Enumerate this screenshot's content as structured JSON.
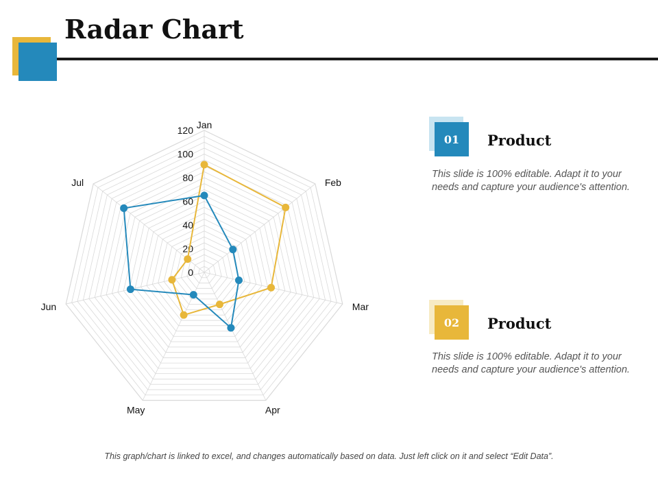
{
  "page": {
    "title": "Radar Chart"
  },
  "colors": {
    "series1": "#e8b73a",
    "series2": "#2489bb",
    "grid": "#d9d9d9",
    "rule": "#1a1a1a"
  },
  "chart_data": {
    "type": "radar",
    "categories": [
      "Jan",
      "Feb",
      "Mar",
      "Apr",
      "May",
      "Jun",
      "Jul"
    ],
    "ticks": [
      0,
      20,
      40,
      60,
      80,
      100,
      120
    ],
    "rlim": [
      0,
      120
    ],
    "grid": true,
    "series": [
      {
        "values": [
          91,
          88,
          58,
          30,
          40,
          28,
          18
        ],
        "color": "#e8b73a"
      },
      {
        "values": [
          65,
          31,
          30,
          52,
          21,
          64,
          87
        ],
        "color": "#2489bb"
      }
    ]
  },
  "products": [
    {
      "number": "01",
      "title": "Product",
      "description": "This slide is 100% editable. Adapt it to your needs and capture your audience's attention."
    },
    {
      "number": "02",
      "title": "Product",
      "description": "This slide is 100% editable. Adapt it to your needs and capture your audience's attention."
    }
  ],
  "footnote": "This graph/chart is linked to excel, and changes automatically based on data. Just left click on it and select “Edit Data”."
}
